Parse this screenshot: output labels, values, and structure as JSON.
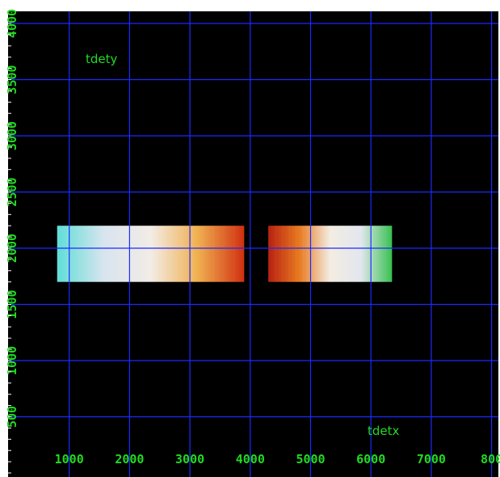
{
  "chart_data": {
    "type": "heatmap",
    "title": "",
    "xlabel": "tdetx",
    "ylabel": "tdety",
    "xlim": [
      0,
      8000
    ],
    "ylim": [
      0,
      4096
    ],
    "x_ticks": [
      "1000",
      "2000",
      "3000",
      "4000",
      "5000",
      "6000",
      "7000",
      "800"
    ],
    "y_ticks": [
      "500",
      "1000",
      "1500",
      "2000",
      "2500",
      "3000",
      "3500",
      "4000"
    ],
    "grid": true,
    "colormap": "cool-to-warm (cyan → white → orange → red)",
    "regions": [
      {
        "name": "",
        "x_range": [
          800,
          3900
        ],
        "y_range": [
          1700,
          2200
        ],
        "color_gradient": [
          "#5fded8",
          "#d8e4ee",
          "#f2ece6",
          "#f0b050",
          "#d03010"
        ]
      },
      {
        "name": "",
        "x_range": [
          4300,
          6350
        ],
        "y_range": [
          1700,
          2200
        ],
        "color_gradient": [
          "#b82010",
          "#e87a20",
          "#f3ede2",
          "#e2e6ee",
          "#38c050"
        ]
      }
    ]
  },
  "colors": {
    "background": "#000000",
    "grid": "#1a2bff",
    "tick_text": "#22d922",
    "axis_label_text": "#22d922",
    "frame": "#ffffff"
  }
}
